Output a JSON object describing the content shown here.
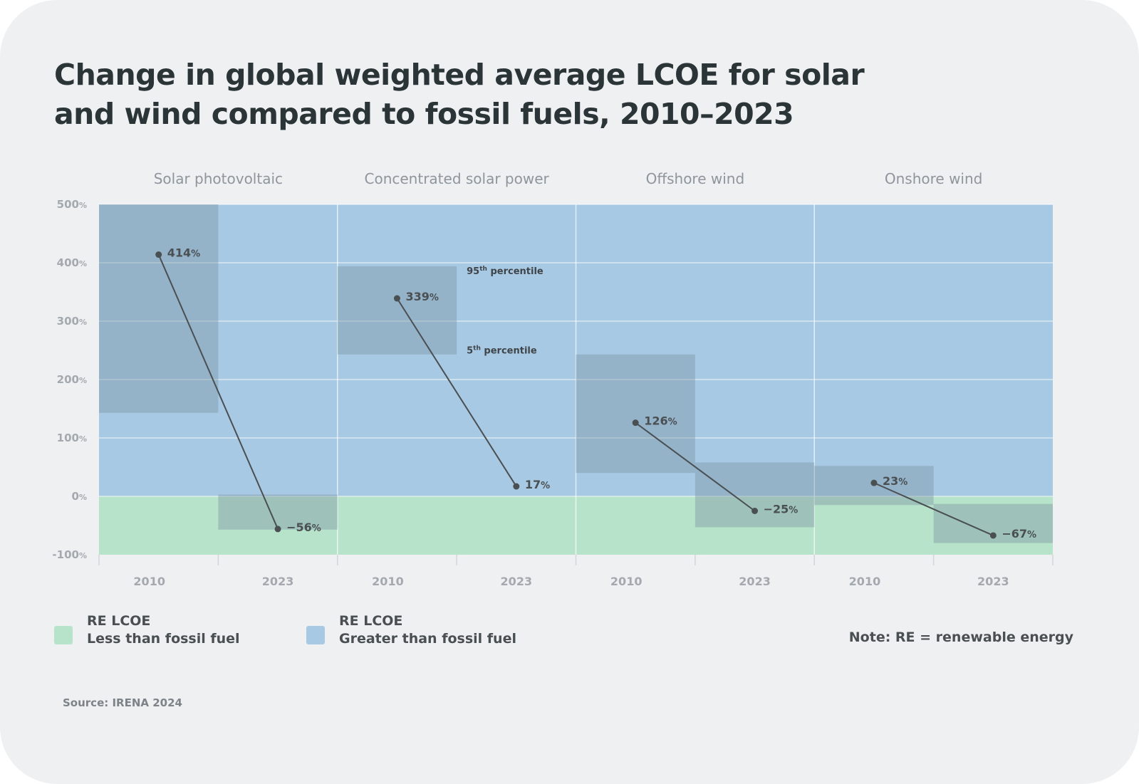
{
  "title": {
    "line1": "Change in global weighted average LCOE for solar",
    "line2": "and wind compared to fossil fuels, 2010–2023"
  },
  "colors": {
    "greater_zone": "#a8c9e3",
    "less_zone": "#b8e3cb",
    "range_box": "#7a93a3",
    "line": "#4a4f52",
    "background": "#eff0f2"
  },
  "chart_data": {
    "type": "line",
    "title": "Change in global weighted average LCOE for solar and wind compared to fossil fuels, 2010–2023",
    "ylim": [
      -100,
      500
    ],
    "yticks": [
      {
        "value": 500,
        "num": "500",
        "unit": "%"
      },
      {
        "value": 400,
        "num": "400",
        "unit": "%"
      },
      {
        "value": 300,
        "num": "300",
        "unit": "%"
      },
      {
        "value": 200,
        "num": "200",
        "unit": "%"
      },
      {
        "value": 100,
        "num": "100",
        "unit": "%"
      },
      {
        "value": 0,
        "num": "0",
        "unit": "%"
      },
      {
        "value": -100,
        "num": "-100",
        "unit": "%"
      }
    ],
    "x": [
      "2010",
      "2023"
    ],
    "panels": [
      {
        "name": "Solar photovoltaic",
        "points": [
          {
            "year": "2010",
            "value": 414,
            "num": "414",
            "unit": "%",
            "p5": 143,
            "p95": 500
          },
          {
            "year": "2023",
            "value": -56,
            "num": "−56",
            "unit": "%",
            "p5": -57,
            "p95": 3
          }
        ]
      },
      {
        "name": "Concentrated solar power",
        "points": [
          {
            "year": "2010",
            "value": 339,
            "num": "339",
            "unit": "%",
            "p5": 243,
            "p95": 394
          },
          {
            "year": "2023",
            "value": 17,
            "num": "17",
            "unit": "%",
            "p5": null,
            "p95": null
          }
        ]
      },
      {
        "name": "Offshore wind",
        "points": [
          {
            "year": "2010",
            "value": 126,
            "num": "126",
            "unit": "%",
            "p5": 40,
            "p95": 243
          },
          {
            "year": "2023",
            "value": -25,
            "num": "−25",
            "unit": "%",
            "p5": -53,
            "p95": 58
          }
        ]
      },
      {
        "name": "Onshore wind",
        "points": [
          {
            "year": "2010",
            "value": 23,
            "num": "23",
            "unit": "%",
            "p5": -15,
            "p95": 52
          },
          {
            "year": "2023",
            "value": -67,
            "num": "−67",
            "unit": "%",
            "p5": -80,
            "p95": -13
          }
        ]
      }
    ],
    "annotations": {
      "p95": {
        "num": "95",
        "sup": "th",
        "rest": " percentile"
      },
      "p5": {
        "num": "5",
        "sup": "th",
        "rest": " percentile"
      }
    }
  },
  "legend": {
    "less": {
      "line1": "RE LCOE",
      "line2": "Less than fossil fuel"
    },
    "greater": {
      "line1": "RE LCOE",
      "line2": "Greater than fossil fuel"
    }
  },
  "note": "Note: RE = renewable energy",
  "source": "Source: IRENA 2024"
}
